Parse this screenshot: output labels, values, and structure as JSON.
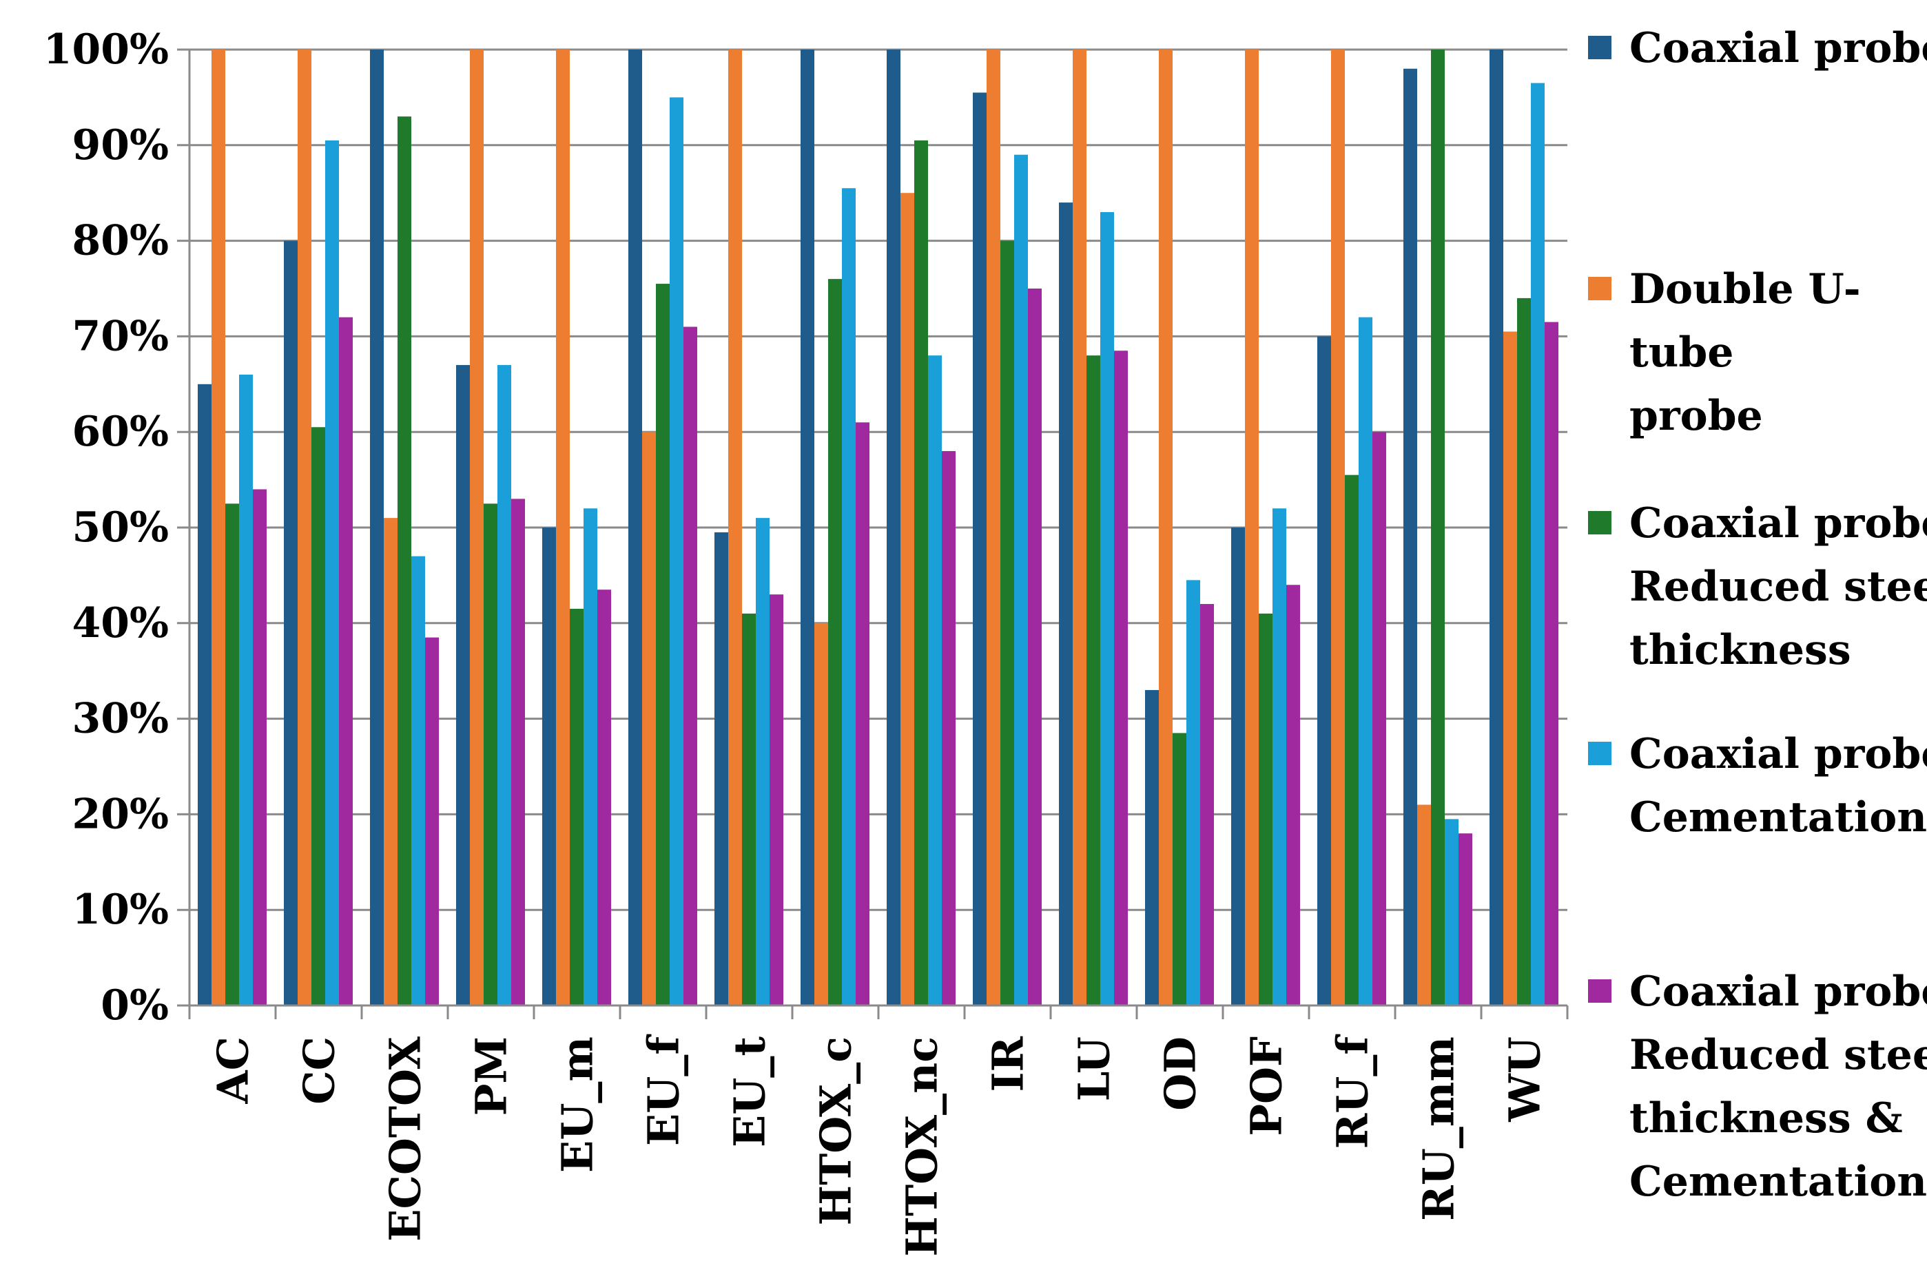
{
  "chart_data": {
    "type": "bar",
    "title": "",
    "xlabel": "",
    "ylabel": "",
    "ylim": [
      0,
      100
    ],
    "y_ticks": [
      "0%",
      "10%",
      "20%",
      "30%",
      "40%",
      "50%",
      "60%",
      "70%",
      "80%",
      "90%",
      "100%"
    ],
    "grid": "horizontal",
    "legend_position": "right",
    "categories": [
      "AC",
      "CC",
      "ECOTOX",
      "PM",
      "EU_m",
      "EU_f",
      "EU_t",
      "HTOX_c",
      "HTOX_nc",
      "IR",
      "LU",
      "OD",
      "POF",
      "RU_f",
      "RU_mm",
      "WU"
    ],
    "series": [
      {
        "name": "Coaxial probe",
        "legend_lines": [
          "Coaxial probe"
        ],
        "color": "#1F5C8B",
        "values": [
          65,
          80,
          100,
          67,
          50,
          100,
          49.5,
          100,
          100,
          95.5,
          84,
          33,
          50,
          70,
          98,
          100
        ]
      },
      {
        "name": "Double U-tube probe",
        "legend_lines": [
          "Double U-",
          "tube",
          "probe"
        ],
        "color": "#ED7D31",
        "values": [
          100,
          100,
          51,
          100,
          100,
          60,
          100,
          40,
          85,
          100,
          100,
          100,
          100,
          100,
          21,
          70.5
        ]
      },
      {
        "name": "Coaxial probe: Reduced steel thickness",
        "legend_lines": [
          "Coaxial probe:",
          "Reduced steel",
          "thickness"
        ],
        "color": "#1F7A2B",
        "values": [
          52.5,
          60.5,
          93,
          52.5,
          41.5,
          75.5,
          41,
          76,
          90.5,
          80,
          68,
          28.5,
          41,
          55.5,
          100,
          74
        ]
      },
      {
        "name": "Coaxial probe: Cementation",
        "legend_lines": [
          "Coaxial probe:",
          "Cementation"
        ],
        "color": "#1A9FD9",
        "values": [
          66,
          90.5,
          47,
          67,
          52,
          95,
          51,
          85.5,
          68,
          89,
          83,
          44.5,
          52,
          72,
          19.5,
          96.5
        ]
      },
      {
        "name": "Coaxial probe: Reduced steel thickness & Cementation",
        "legend_lines": [
          "Coaxial probe:",
          "Reduced steel",
          "thickness &",
          "Cementation"
        ],
        "color": "#A0299F",
        "values": [
          54,
          72,
          38.5,
          53,
          43.5,
          71,
          43,
          61,
          58,
          75,
          68.5,
          42,
          44,
          60,
          18,
          71.5
        ]
      }
    ]
  }
}
